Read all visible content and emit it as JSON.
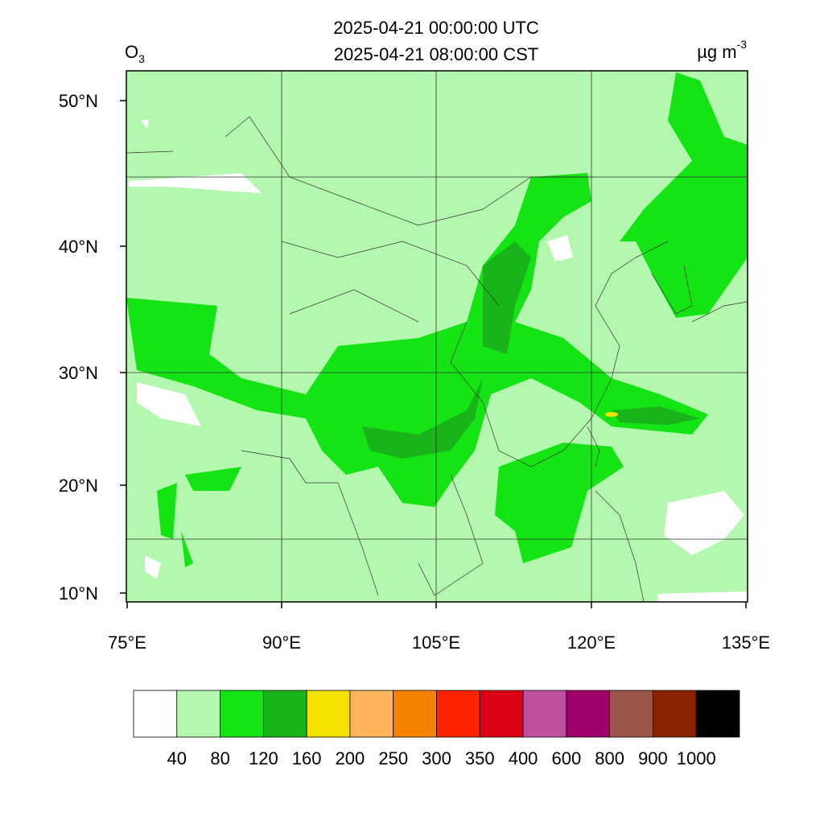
{
  "header": {
    "utc": "2025-04-21 00:00:00 UTC",
    "local": "2025-04-21 08:00:00 CST"
  },
  "variable": {
    "name": "O",
    "subscript": "3"
  },
  "units": {
    "text": "µg m",
    "superscript": "-3"
  },
  "lat_ticks": [
    "50°N",
    "40°N",
    "30°N",
    "20°N",
    "10°N"
  ],
  "lon_ticks": [
    "75°E",
    "90°E",
    "105°E",
    "120°E",
    "135°E"
  ],
  "colorbar": {
    "levels": [
      40,
      80,
      120,
      160,
      200,
      250,
      300,
      350,
      400,
      600,
      800,
      900,
      1000
    ],
    "colors": [
      "#ffffff",
      "#b4f8b0",
      "#14e414",
      "#19b419",
      "#f5e100",
      "#feb45a",
      "#f78200",
      "#ff2300",
      "#dc0014",
      "#be50a0",
      "#a00069",
      "#9b5546",
      "#8c2300",
      "#000000"
    ]
  }
}
